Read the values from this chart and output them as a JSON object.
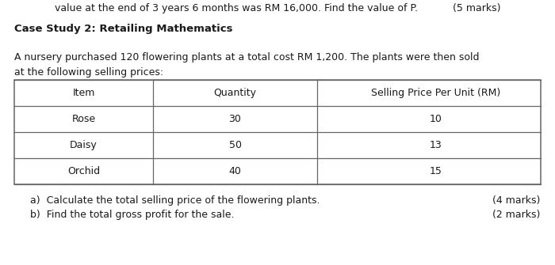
{
  "title": "Case Study 2: Retailing Mathematics",
  "intro_line1": "A nursery purchased 120 flowering plants at a total cost RM 1,200. The plants were then sold",
  "intro_line2": "at the following selling prices:",
  "table_headers": [
    "Item",
    "Quantity",
    "Selling Price Per Unit (RM)"
  ],
  "table_rows": [
    [
      "Rose",
      "30",
      "10"
    ],
    [
      "Daisy",
      "50",
      "13"
    ],
    [
      "Orchid",
      "40",
      "15"
    ]
  ],
  "question_a": "a)  Calculate the total selling price of the flowering plants.",
  "question_a_marks": "(4 marks)",
  "question_b": "b)  Find the total gross profit for the sale.",
  "question_b_marks": "(2 marks)",
  "top_partial_text": "value at the end of 3 years 6 months was RM 16,000. Find the value of P.           (5 marks)",
  "bg_color": "#ffffff",
  "text_color": "#1a1a1a",
  "table_border_color": "#666666",
  "font_size_title": 9.5,
  "font_size_body": 9.0,
  "font_size_table": 9.0
}
